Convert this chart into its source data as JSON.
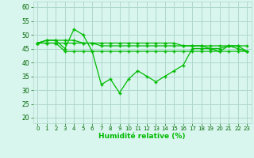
{
  "x": [
    0,
    1,
    2,
    3,
    4,
    5,
    6,
    7,
    8,
    9,
    10,
    11,
    12,
    13,
    14,
    15,
    16,
    17,
    18,
    19,
    20,
    21,
    22,
    23
  ],
  "line1": [
    47,
    48,
    48,
    45,
    52,
    50,
    44,
    32,
    34,
    29,
    34,
    37,
    35,
    33,
    35,
    37,
    39,
    45,
    45,
    45,
    44,
    46,
    46,
    44
  ],
  "line2": [
    47,
    48,
    48,
    48,
    48,
    47,
    47,
    46,
    46,
    46,
    46,
    46,
    46,
    46,
    46,
    46,
    46,
    46,
    46,
    46,
    46,
    46,
    46,
    46
  ],
  "line3": [
    47,
    47,
    47,
    47,
    47,
    47,
    47,
    47,
    47,
    47,
    47,
    47,
    47,
    47,
    47,
    47,
    46,
    46,
    46,
    45,
    45,
    46,
    45,
    44
  ],
  "line4": [
    47,
    47,
    47,
    44,
    44,
    44,
    44,
    44,
    44,
    44,
    44,
    44,
    44,
    44,
    44,
    44,
    44,
    44,
    44,
    44,
    44,
    44,
    44,
    44
  ],
  "line_color": "#00bb00",
  "bg_color": "#d8f5ee",
  "grid_color": "#b0d8cc",
  "xlabel": "Humidité relative (%)",
  "ylim": [
    18,
    62
  ],
  "xlim": [
    -0.5,
    23.5
  ],
  "yticks": [
    20,
    25,
    30,
    35,
    40,
    45,
    50,
    55,
    60
  ],
  "xticks": [
    0,
    1,
    2,
    3,
    4,
    5,
    6,
    7,
    8,
    9,
    10,
    11,
    12,
    13,
    14,
    15,
    16,
    17,
    18,
    19,
    20,
    21,
    22,
    23
  ]
}
